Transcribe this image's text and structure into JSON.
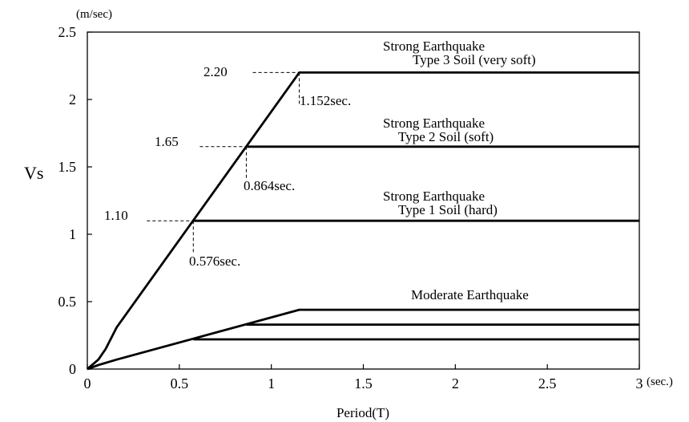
{
  "chart_data": {
    "type": "line",
    "ylabel": "Vs",
    "y_unit": "(m/sec)",
    "xlabel": "Period(T)",
    "x_unit": "(sec.)",
    "xlim": [
      0,
      3
    ],
    "ylim": [
      0,
      2.5
    ],
    "x_ticks": [
      "0",
      "0.5",
      "1",
      "1.5",
      "2",
      "2.5",
      "3"
    ],
    "y_ticks": [
      "0",
      "0.5",
      "1",
      "1.5",
      "2",
      "2.5"
    ],
    "grid": false,
    "series": [
      {
        "group": "Strong Earthquake",
        "name": "Type 3 Soil (very soft)",
        "points": [
          [
            0,
            0
          ],
          [
            0.06,
            0.07
          ],
          [
            0.1,
            0.15
          ],
          [
            0.16,
            0.31
          ],
          [
            1.152,
            2.2
          ],
          [
            3,
            2.2
          ]
        ]
      },
      {
        "group": "Strong Earthquake",
        "name": "Type 2 Soil (soft)",
        "points": [
          [
            0.864,
            1.65
          ],
          [
            3,
            1.65
          ]
        ]
      },
      {
        "group": "Strong Earthquake",
        "name": "Type 1 Soil (hard)",
        "points": [
          [
            0.576,
            1.1
          ],
          [
            3,
            1.1
          ]
        ]
      },
      {
        "group": "Moderate Earthquake",
        "name": "",
        "points": [
          [
            0,
            0
          ],
          [
            0.06,
            0.03
          ],
          [
            0.16,
            0.07
          ],
          [
            1.152,
            0.44
          ],
          [
            3,
            0.44
          ]
        ]
      },
      {
        "group": "Moderate Earthquake",
        "name": "",
        "points": [
          [
            0.864,
            0.33
          ],
          [
            3,
            0.33
          ]
        ]
      },
      {
        "group": "Moderate Earthquake",
        "name": "",
        "points": [
          [
            0.576,
            0.22
          ],
          [
            3,
            0.22
          ]
        ]
      }
    ],
    "annotations": {
      "strong_title": "Strong Earthquake",
      "type3": "Type 3 Soil (very soft)",
      "type2": "Type 2 Soil (soft)",
      "type1": "Type 1 Soil (hard)",
      "moderate_title": "Moderate Earthquake",
      "v3": "2.20",
      "v2": "1.65",
      "v1": "1.10",
      "t3": "1.152sec.",
      "t2": "0.864sec.",
      "t1": "0.576sec."
    },
    "corner_points": [
      {
        "x": 1.152,
        "y": 2.2
      },
      {
        "x": 0.864,
        "y": 1.65
      },
      {
        "x": 0.576,
        "y": 1.1
      }
    ]
  }
}
